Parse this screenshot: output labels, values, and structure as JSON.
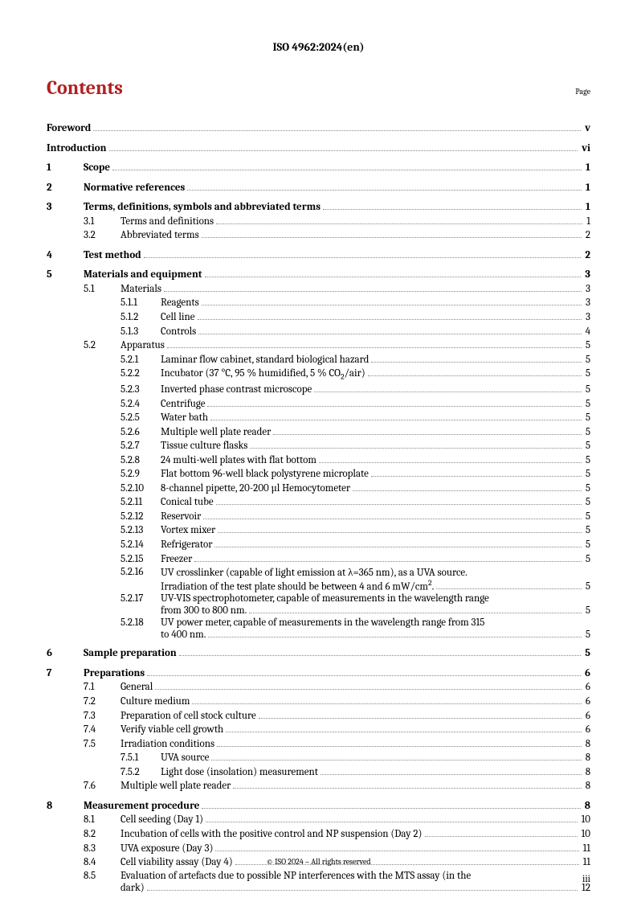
{
  "header": "ISO 4962:2024(en)",
  "contents_title": "Contents",
  "page_label": "Page",
  "footer": "© ISO 2024 – All rights reserved",
  "page_number": "iii",
  "toc": {
    "foreword": {
      "label": "Foreword",
      "page": "v"
    },
    "introduction": {
      "label": "Introduction",
      "page": "vi"
    },
    "s1": {
      "num": "1",
      "label": "Scope",
      "page": "1"
    },
    "s2": {
      "num": "2",
      "label": "Normative references",
      "page": "1"
    },
    "s3": {
      "num": "3",
      "label": "Terms, definitions, symbols and abbreviated terms",
      "page": "1"
    },
    "s3_1": {
      "num": "3.1",
      "label": "Terms and definitions",
      "page": "1"
    },
    "s3_2": {
      "num": "3.2",
      "label": "Abbreviated terms",
      "page": "2"
    },
    "s4": {
      "num": "4",
      "label": "Test method",
      "page": "2"
    },
    "s5": {
      "num": "5",
      "label": "Materials and equipment",
      "page": "3"
    },
    "s5_1": {
      "num": "5.1",
      "label": "Materials",
      "page": "3"
    },
    "s5_1_1": {
      "num": "5.1.1",
      "label": "Reagents",
      "page": "3"
    },
    "s5_1_2": {
      "num": "5.1.2",
      "label": "Cell line",
      "page": "3"
    },
    "s5_1_3": {
      "num": "5.1.3",
      "label": "Controls",
      "page": "4"
    },
    "s5_2": {
      "num": "5.2",
      "label": "Apparatus",
      "page": "5"
    },
    "s5_2_1": {
      "num": "5.2.1",
      "label": "Laminar flow cabinet, standard biological hazard",
      "page": "5"
    },
    "s5_2_2": {
      "num": "5.2.2",
      "page": "5",
      "label_pre": "Incubator (37 °C, 95 % humidified, 5 % CO",
      "label_post": "/air)"
    },
    "s5_2_3": {
      "num": "5.2.3",
      "label": "Inverted phase contrast microscope",
      "page": "5"
    },
    "s5_2_4": {
      "num": "5.2.4",
      "label": "Centrifuge",
      "page": "5"
    },
    "s5_2_5": {
      "num": "5.2.5",
      "label": "Water bath",
      "page": "5"
    },
    "s5_2_6": {
      "num": "5.2.6",
      "label": "Multiple well plate reader",
      "page": "5"
    },
    "s5_2_7": {
      "num": "5.2.7",
      "label": "Tissue culture flasks",
      "page": "5"
    },
    "s5_2_8": {
      "num": "5.2.8",
      "label": "24 multi-well plates with flat bottom",
      "page": "5"
    },
    "s5_2_9": {
      "num": "5.2.9",
      "label": "Flat bottom 96-well black polystyrene microplate",
      "page": "5"
    },
    "s5_2_10": {
      "num": "5.2.10",
      "label": "8-channel pipette, 20-200 µl Hemocytometer",
      "page": "5"
    },
    "s5_2_11": {
      "num": "5.2.11",
      "label": "Conical tube",
      "page": "5"
    },
    "s5_2_12": {
      "num": "5.2.12",
      "label": "Reservoir",
      "page": "5"
    },
    "s5_2_13": {
      "num": "5.2.13",
      "label": "Vortex mixer",
      "page": "5"
    },
    "s5_2_14": {
      "num": "5.2.14",
      "label": "Refrigerator",
      "page": "5"
    },
    "s5_2_15": {
      "num": "5.2.15",
      "label": "Freezer",
      "page": "5"
    },
    "s5_2_16": {
      "num": "5.2.16",
      "page": "5",
      "line1": "UV crosslinker (capable of light emission at λ=365 nm), as a UVA source.",
      "line2_pre": "Irradiation of the test plate should be between 4 and 6 mW/cm",
      "line2_post": "."
    },
    "s5_2_17": {
      "num": "5.2.17",
      "page": "5",
      "line1": "UV-VIS spectrophotometer, capable of measurements in the wavelength range",
      "line2": "from 300 to 800 nm."
    },
    "s5_2_18": {
      "num": "5.2.18",
      "page": "5",
      "line1": "UV power meter, capable of measurements in the wavelength range from 315",
      "line2": "to 400 nm."
    },
    "s6": {
      "num": "6",
      "label": "Sample preparation",
      "page": "5"
    },
    "s7": {
      "num": "7",
      "label": "Preparations",
      "page": "6"
    },
    "s7_1": {
      "num": "7.1",
      "label": "General",
      "page": "6"
    },
    "s7_2": {
      "num": "7.2",
      "label": "Culture medium",
      "page": "6"
    },
    "s7_3": {
      "num": "7.3",
      "label": "Preparation of cell stock culture",
      "page": "6"
    },
    "s7_4": {
      "num": "7.4",
      "label": "Verify viable cell growth",
      "page": "6"
    },
    "s7_5": {
      "num": "7.5",
      "label": "Irradiation conditions",
      "page": "8"
    },
    "s7_5_1": {
      "num": "7.5.1",
      "label": "UVA source",
      "page": "8"
    },
    "s7_5_2": {
      "num": "7.5.2",
      "label": "Light dose (insolation) measurement",
      "page": "8"
    },
    "s7_6": {
      "num": "7.6",
      "label": "Multiple well plate reader",
      "page": "8"
    },
    "s8": {
      "num": "8",
      "label": "Measurement procedure",
      "page": "8"
    },
    "s8_1": {
      "num": "8.1",
      "label": "Cell seeding (Day 1)",
      "page": "10"
    },
    "s8_2": {
      "num": "8.2",
      "label": "Incubation of cells with the positive control and NP suspension (Day 2)",
      "page": "10"
    },
    "s8_3": {
      "num": "8.3",
      "label": "UVA exposure (Day 3)",
      "page": "11"
    },
    "s8_4": {
      "num": "8.4",
      "label": "Cell viability assay (Day 4)",
      "page": "11"
    },
    "s8_5": {
      "num": "8.5",
      "page": "12",
      "line1": "Evaluation of artefacts due to possible NP interferences with the MTS assay (in the",
      "line2": "dark)"
    }
  }
}
